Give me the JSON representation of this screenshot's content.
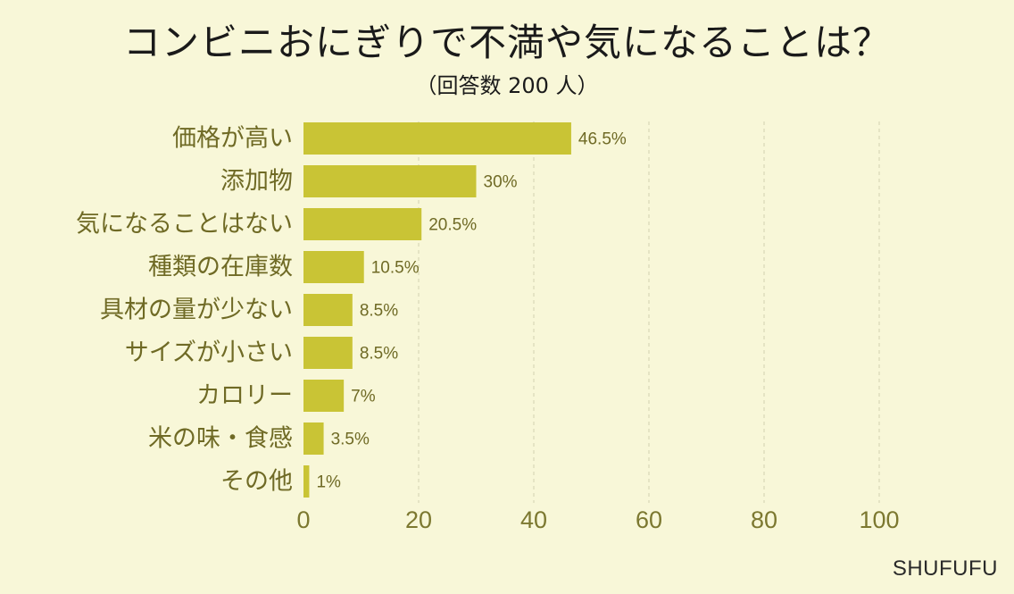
{
  "title": "コンビニおにぎりで不満や気になることは？",
  "subtitle": "（回答数 200 人）",
  "watermark": "SHUFUFU",
  "colors": {
    "background": "#f8f7d8",
    "bar": "#c9c435",
    "label_text": "#6f6a25",
    "tick_text": "#7c7830",
    "grid": "#d2d0b0"
  },
  "chart_data": {
    "type": "bar",
    "orientation": "horizontal",
    "categories": [
      "価格が高い",
      "添加物",
      "気になることはない",
      "種類の在庫数",
      "具材の量が少ない",
      "サイズが小さい",
      "カロリー",
      "米の味・食感",
      "その他"
    ],
    "values": [
      46.5,
      30,
      20.5,
      10.5,
      8.5,
      8.5,
      7,
      3.5,
      1
    ],
    "value_labels": [
      "46.5%",
      "30%",
      "20.5%",
      "10.5%",
      "8.5%",
      "8.5%",
      "7%",
      "3.5%",
      "1%"
    ],
    "xlim": [
      0,
      100
    ],
    "xticks": [
      "0",
      "20",
      "40",
      "60",
      "80",
      "100"
    ],
    "grid": true,
    "xlabel": "",
    "ylabel": ""
  }
}
